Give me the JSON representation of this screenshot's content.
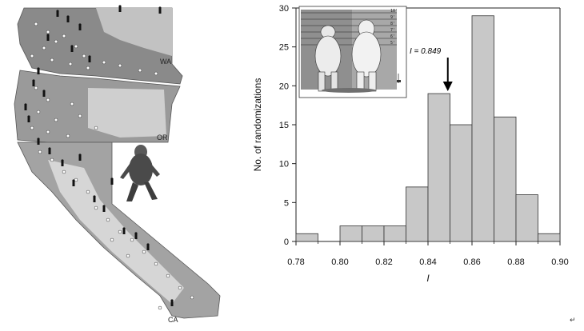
{
  "map": {
    "state_labels": [
      "WA",
      "OR",
      "CA"
    ],
    "icons": {
      "detection": "bigfoot-silhouette-icon",
      "sample_site": "open-circle-icon",
      "figure": "bigfoot-walking-figure"
    }
  },
  "inset": {
    "height_labels": [
      "10'",
      "9'",
      "8'",
      "7'",
      "6'",
      "5'"
    ],
    "icon": "bear-and-bigfoot-comparison-drawing"
  },
  "annotation": {
    "text": "I = 0.849",
    "value": 0.849,
    "arrow_icon": "down-arrow-icon"
  },
  "corner_mark": "↵",
  "colors": {
    "bar_fill": "#c8c8c8",
    "bar_stroke": "#333333",
    "map_dark": "#7a7a7a",
    "map_light": "#d0d0d0"
  },
  "chart_data": {
    "type": "bar",
    "title": "",
    "xlabel": "I",
    "ylabel": "No. of randomizations",
    "xlim": [
      0.78,
      0.9
    ],
    "ylim": [
      0,
      30
    ],
    "bin_width": 0.01,
    "x_ticks": [
      "0.78",
      "0.80",
      "0.82",
      "0.84",
      "0.86",
      "0.88",
      "0.90"
    ],
    "y_ticks": [
      "0",
      "5",
      "10",
      "15",
      "20",
      "25",
      "30"
    ],
    "bins": [
      0.78,
      0.79,
      0.8,
      0.81,
      0.82,
      0.83,
      0.84,
      0.85,
      0.86,
      0.87,
      0.88,
      0.89
    ],
    "values": [
      1,
      0,
      2,
      2,
      2,
      7,
      19,
      15,
      29,
      16,
      6,
      1
    ],
    "grid": false,
    "legend": "none"
  }
}
